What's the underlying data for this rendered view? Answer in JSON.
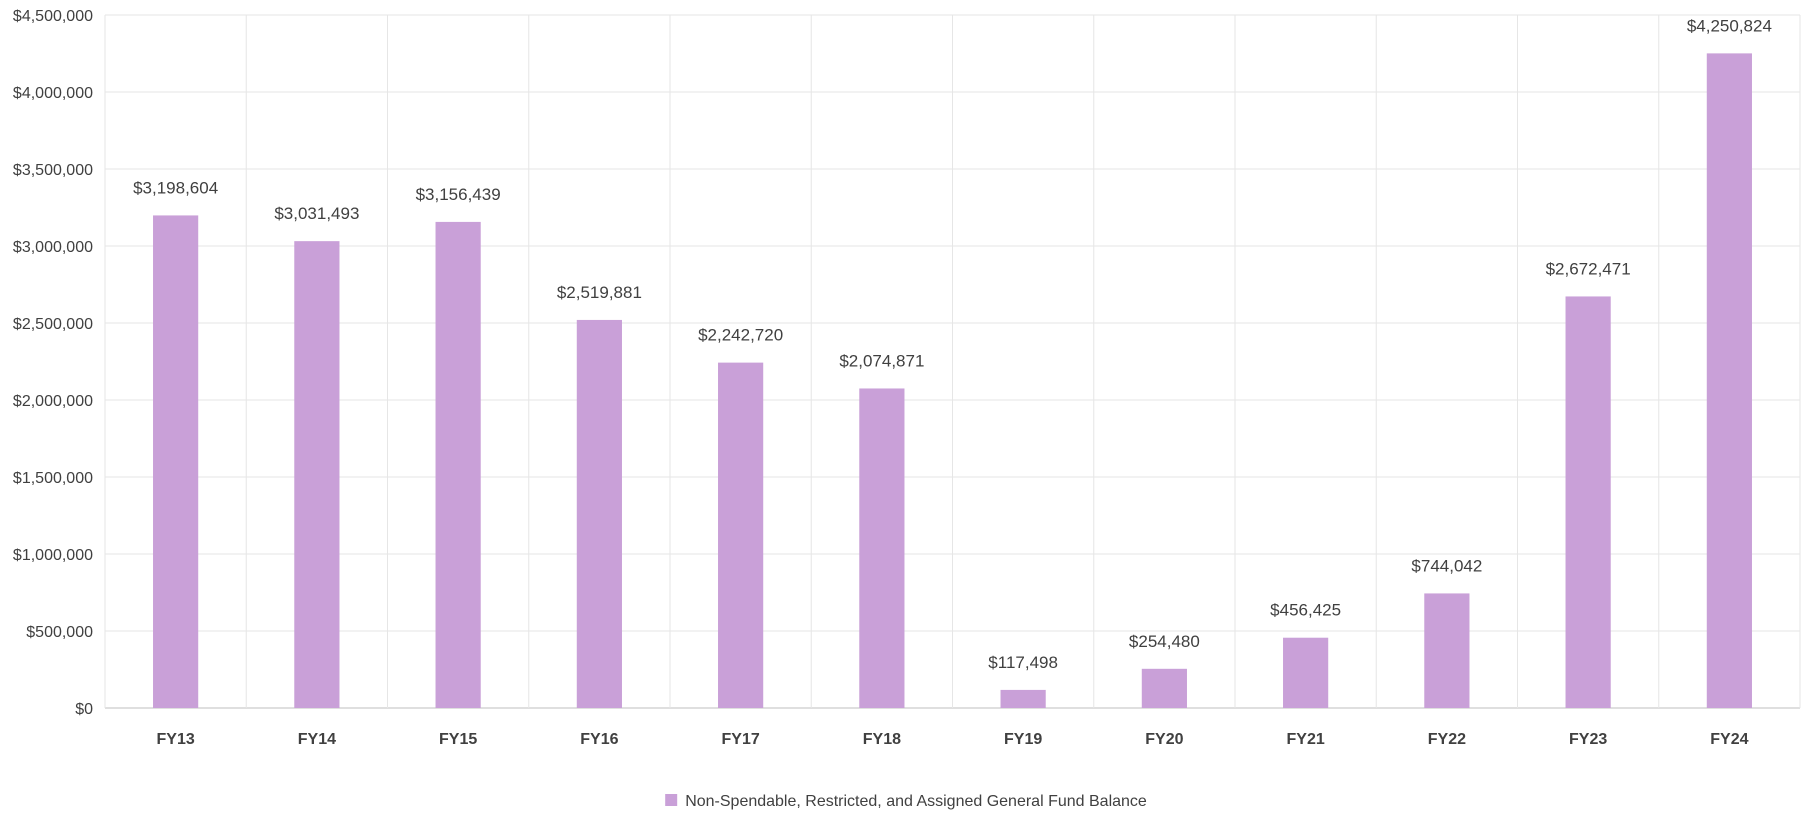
{
  "chart_data": {
    "type": "bar",
    "title": "",
    "xlabel": "",
    "ylabel": "",
    "categories": [
      "FY13",
      "FY14",
      "FY15",
      "FY16",
      "FY17",
      "FY18",
      "FY19",
      "FY20",
      "FY21",
      "FY22",
      "FY23",
      "FY24"
    ],
    "series": [
      {
        "name": "Non-Spendable, Restricted, and Assigned General Fund Balance",
        "color": "#c9a0d8",
        "values": [
          3198604,
          3031493,
          3156439,
          2519881,
          2242720,
          2074871,
          117498,
          254480,
          456425,
          744042,
          2672471,
          4250824
        ],
        "data_labels": [
          "$3,198,604",
          "$3,031,493",
          "$3,156,439",
          "$2,519,881",
          "$2,242,720",
          "$2,074,871",
          "$117,498",
          "$254,480",
          "$456,425",
          "$744,042",
          "$2,672,471",
          "$4,250,824"
        ]
      }
    ],
    "ylim": [
      0,
      4500000
    ],
    "y_ticks": [
      0,
      500000,
      1000000,
      1500000,
      2000000,
      2500000,
      3000000,
      3500000,
      4000000,
      4500000
    ],
    "y_tick_labels": [
      "$0",
      "$500,000",
      "$1,000,000",
      "$1,500,000",
      "$2,000,000",
      "$2,500,000",
      "$3,000,000",
      "$3,500,000",
      "$4,000,000",
      "$4,500,000"
    ],
    "grid": true,
    "legend_position": "bottom-center"
  }
}
